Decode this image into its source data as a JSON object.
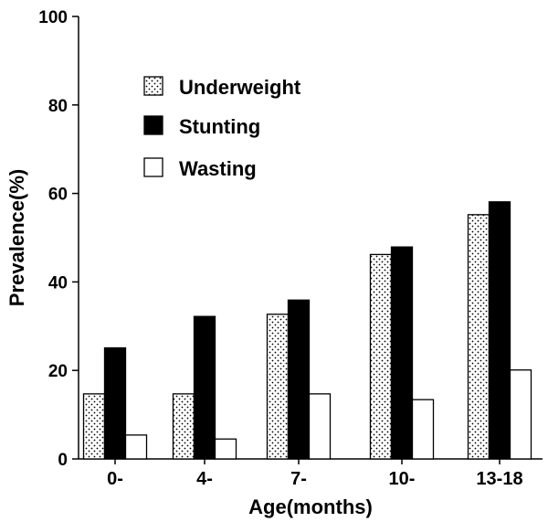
{
  "chart_data": {
    "type": "bar",
    "title": "",
    "xlabel": "Age(months)",
    "ylabel": "Prevalence(%)",
    "ylim": [
      0,
      100
    ],
    "yticks": [
      "0",
      "20",
      "40",
      "60",
      "80",
      "100"
    ],
    "categories": [
      "0-",
      "4-",
      "7-",
      "10-",
      "13-18"
    ],
    "series": [
      {
        "name": "Underweight",
        "values": [
          14.7,
          14.7,
          32.7,
          46.2,
          55.2
        ],
        "fill": "dotted"
      },
      {
        "name": "Stunting",
        "values": [
          25.1,
          32.2,
          35.9,
          47.9,
          58.1
        ],
        "fill": "#000000"
      },
      {
        "name": "Wasting",
        "values": [
          5.4,
          4.5,
          14.7,
          13.4,
          20.1
        ],
        "fill": "#ffffff"
      }
    ],
    "legend_position": "top-left",
    "grid": false
  }
}
